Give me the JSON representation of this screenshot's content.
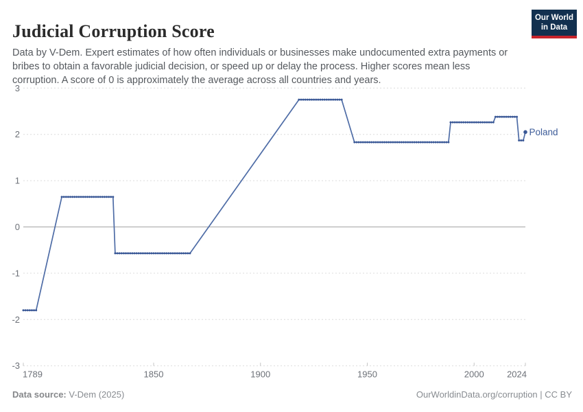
{
  "header": {
    "title": "Judicial Corruption Score",
    "subtitle": "Data by V-Dem. Expert estimates of how often individuals or businesses make undocumented extra payments or bribes to obtain a favorable judicial decision, or speed up or delay the process. Higher scores mean less corruption. A score of 0 is approximately the average across all countries and years.",
    "logo": {
      "line1": "Our World",
      "line2": "in Data"
    }
  },
  "chart_data": {
    "type": "line",
    "title": "Judicial Corruption Score",
    "entity": "Poland",
    "xlim": [
      1789,
      2024
    ],
    "ylim": [
      -3,
      3
    ],
    "x_ticks": [
      1789,
      1850,
      1900,
      1950,
      2000,
      2024
    ],
    "y_ticks": [
      3,
      2,
      1,
      0,
      -1,
      -2,
      -3
    ],
    "grid": "dashed-horizontal",
    "zero_line": true,
    "legend_position": "end-of-line-label",
    "series": [
      {
        "name": "Poland",
        "segments": [
          {
            "from": 1789,
            "to": 1795,
            "value": -1.8
          },
          {
            "from": 1807,
            "to": 1831,
            "value": 0.65
          },
          {
            "from": 1832,
            "to": 1867,
            "value": -0.57
          },
          {
            "from": 1918,
            "to": 1938,
            "value": 2.75
          },
          {
            "from": 1944,
            "to": 1988,
            "value": 1.83
          },
          {
            "from": 1989,
            "to": 2009,
            "value": 2.26
          },
          {
            "from": 2010,
            "to": 2020,
            "value": 2.38
          },
          {
            "from": 2021,
            "to": 2023,
            "value": 1.87
          },
          {
            "from": 2024,
            "to": 2024,
            "value": 2.05
          }
        ],
        "data_gaps_drawn_as_straight_lines": [
          [
            1795,
            1807
          ],
          [
            1867,
            1918
          ],
          [
            1938,
            1944
          ]
        ],
        "last_point": {
          "year": 2024,
          "value": 2.05
        }
      }
    ]
  },
  "footer": {
    "source_label": "Data source:",
    "source_value": " V-Dem (2025)",
    "credit": "OurWorldinData.org/corruption | CC BY"
  },
  "colors": {
    "line": "#4E6CA6",
    "marker": "#3A5896",
    "entity_label": "#3D5C99",
    "grid": "#dcdcdc",
    "zero_line": "#a3a3a3",
    "axis_tick": "#c4c4c4",
    "axis_text": "#6d7178",
    "title_text": "#2b2b2b",
    "subtitle_text": "#55595e",
    "footer_text": "#888c91",
    "logo_bg": "#12304f",
    "logo_red": "#c7242c"
  }
}
